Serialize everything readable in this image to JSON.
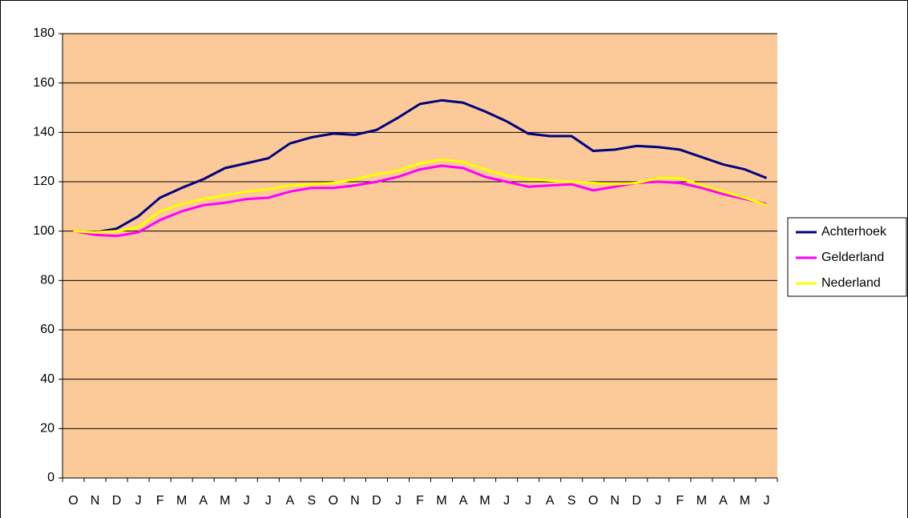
{
  "chart_data": {
    "type": "line",
    "categories": [
      "O",
      "N",
      "D",
      "J",
      "F",
      "M",
      "A",
      "M",
      "J",
      "J",
      "A",
      "S",
      "O",
      "N",
      "D",
      "J",
      "F",
      "M",
      "A",
      "M",
      "J",
      "J",
      "A",
      "S",
      "O",
      "N",
      "D",
      "J",
      "F",
      "M",
      "A",
      "M",
      "J"
    ],
    "series": [
      {
        "name": "Achterhoek",
        "color": "#000080",
        "values": [
          100,
          99.5,
          101,
          106,
          113.5,
          117.5,
          121,
          125.5,
          127.5,
          129.5,
          135.5,
          138,
          139.5,
          139,
          141,
          146,
          151.5,
          153,
          152,
          148.5,
          144.5,
          139.5,
          138.5,
          138.5,
          132.5,
          133,
          134.5,
          134,
          133,
          130,
          127,
          125,
          121.5
        ]
      },
      {
        "name": "Gelderland",
        "color": "#ff00ff",
        "values": [
          100,
          98.5,
          98,
          99.5,
          104.5,
          108,
          110.5,
          111.5,
          113,
          113.5,
          116,
          117.5,
          117.5,
          118.5,
          120,
          122,
          125,
          126.5,
          125.5,
          122,
          120,
          118,
          118.5,
          119,
          116.5,
          118,
          119.5,
          120,
          119.5,
          117.5,
          115,
          113,
          111
        ]
      },
      {
        "name": "Nederland",
        "color": "#ffff00",
        "values": [
          100,
          99.5,
          100,
          101.5,
          108,
          111,
          113,
          114.5,
          116,
          117,
          118.5,
          119,
          119.5,
          121,
          123,
          124.5,
          127.5,
          129,
          128,
          125,
          122.5,
          121,
          120.5,
          120,
          119.5,
          119,
          119.5,
          121.5,
          121.5,
          118.5,
          116,
          113.5,
          110.5
        ]
      }
    ],
    "ylim": [
      0,
      180
    ],
    "yticks": [
      0,
      20,
      40,
      60,
      80,
      100,
      120,
      140,
      160,
      180
    ],
    "grid": true,
    "background": "#fcc998",
    "legend": "right"
  }
}
